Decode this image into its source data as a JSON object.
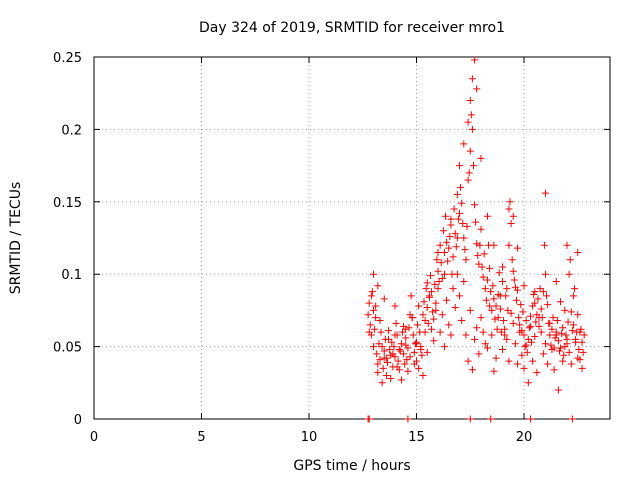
{
  "chart_data": {
    "type": "scatter",
    "title": "Day 324 of 2019, SRMTID for receiver mro1",
    "xlabel": "GPS time / hours",
    "ylabel": "SRMTID / TECUs",
    "xlim": [
      0,
      24
    ],
    "ylim": [
      0,
      0.25
    ],
    "grid": true,
    "marker": "+",
    "color": "#ff0000",
    "x_ticks": [
      {
        "value": 0,
        "label": "0"
      },
      {
        "value": 5,
        "label": "5"
      },
      {
        "value": 10,
        "label": "10"
      },
      {
        "value": 15,
        "label": "15"
      },
      {
        "value": 20,
        "label": "20"
      }
    ],
    "y_ticks": [
      {
        "value": 0,
        "label": "0"
      },
      {
        "value": 0.05,
        "label": "0.05"
      },
      {
        "value": 0.1,
        "label": "0.1"
      },
      {
        "value": 0.15,
        "label": "0.15"
      },
      {
        "value": 0.2,
        "label": "0.2"
      },
      {
        "value": 0.25,
        "label": "0.25"
      }
    ],
    "series": [
      {
        "name": "mro1",
        "x": [
          12.75,
          12.8,
          12.85,
          12.9,
          12.95,
          13.0,
          13.05,
          13.1,
          13.15,
          13.2,
          13.25,
          13.3,
          13.35,
          13.4,
          13.45,
          13.5,
          13.55,
          13.6,
          13.65,
          13.7,
          13.75,
          13.8,
          13.85,
          13.9,
          13.95,
          14.0,
          14.05,
          14.1,
          14.15,
          14.2,
          14.25,
          14.3,
          14.35,
          14.4,
          14.45,
          14.5,
          14.55,
          14.6,
          14.65,
          14.7,
          14.75,
          14.8,
          14.85,
          14.9,
          14.95,
          15.0,
          15.05,
          15.1,
          15.15,
          15.2,
          15.25,
          15.3,
          15.35,
          15.4,
          15.45,
          15.5,
          15.55,
          15.6,
          15.65,
          15.7,
          15.75,
          15.8,
          15.85,
          15.9,
          15.95,
          16.0,
          16.05,
          16.1,
          16.15,
          16.2,
          16.25,
          16.3,
          16.35,
          16.4,
          16.45,
          16.5,
          16.55,
          16.6,
          16.65,
          16.7,
          16.75,
          16.8,
          16.85,
          16.9,
          16.95,
          17.0,
          17.05,
          17.1,
          17.15,
          17.2,
          17.25,
          17.3,
          17.35,
          17.4,
          17.45,
          17.5,
          17.55,
          17.6,
          17.65,
          17.7,
          17.75,
          17.8,
          17.85,
          17.9,
          17.95,
          18.0,
          18.05,
          18.1,
          18.15,
          18.2,
          18.25,
          18.3,
          18.35,
          18.4,
          18.45,
          18.5,
          18.55,
          18.6,
          18.65,
          18.7,
          18.75,
          18.8,
          18.85,
          18.9,
          18.95,
          19.0,
          19.05,
          19.1,
          19.15,
          19.2,
          19.25,
          19.3,
          19.35,
          19.4,
          19.45,
          19.5,
          19.55,
          19.6,
          19.65,
          19.7,
          19.75,
          19.8,
          19.85,
          19.9,
          19.95,
          20.0,
          20.05,
          20.1,
          20.15,
          20.2,
          20.25,
          20.3,
          20.35,
          20.4,
          20.45,
          20.5,
          20.55,
          20.6,
          20.65,
          20.7,
          20.75,
          20.8,
          20.85,
          20.9,
          20.95,
          21.0,
          21.05,
          21.1,
          21.15,
          21.2,
          21.25,
          21.3,
          21.35,
          21.4,
          21.45,
          21.5,
          21.55,
          21.6,
          21.65,
          21.7,
          21.75,
          21.8,
          21.85,
          21.9,
          21.95,
          22.0,
          22.05,
          22.1,
          22.15,
          22.2,
          22.25,
          22.3,
          22.35,
          22.4,
          22.45,
          22.5,
          22.55,
          22.6,
          22.65,
          22.7,
          22.75,
          22.8,
          12.8,
          12.9,
          13.0,
          13.1,
          13.2,
          13.3,
          13.4,
          13.5,
          13.6,
          13.7,
          13.8,
          13.9,
          14.0,
          14.1,
          14.2,
          14.3,
          14.4,
          14.5,
          14.6,
          14.7,
          14.8,
          14.9,
          15.0,
          15.1,
          15.2,
          15.3,
          15.4,
          15.5,
          15.6,
          15.7,
          15.8,
          15.9,
          16.0,
          16.1,
          16.2,
          16.3,
          16.4,
          16.5,
          16.6,
          16.7,
          16.8,
          16.9,
          17.0,
          17.1,
          17.2,
          17.3,
          17.4,
          17.5,
          17.6,
          17.7,
          17.8,
          17.9,
          18.0,
          18.1,
          18.2,
          18.3,
          18.4,
          18.5,
          18.6,
          18.7,
          18.8,
          18.9,
          19.0,
          19.1,
          19.2,
          19.3,
          19.4,
          19.5,
          19.6,
          19.7,
          19.8,
          19.9,
          20.0,
          20.1,
          20.2,
          20.3,
          20.4,
          20.5,
          20.6,
          20.7,
          20.8,
          20.9,
          21.0,
          21.1,
          21.2,
          21.3,
          21.4,
          21.5,
          21.6,
          21.7,
          21.8,
          21.9,
          22.0,
          22.1,
          22.2,
          22.3,
          22.4,
          22.5,
          22.6,
          22.7,
          13.0,
          13.2,
          13.5,
          14.0,
          14.5,
          15.0,
          15.5,
          16.0,
          16.3,
          16.6,
          16.9,
          17.0,
          17.2,
          17.4,
          17.5,
          17.6,
          17.7,
          17.8,
          18.0,
          18.3,
          18.6,
          19.0,
          19.3,
          19.5,
          19.7,
          20.0,
          20.5,
          21.0,
          21.5,
          22.0,
          22.5,
          12.75,
          12.8,
          14.6,
          17.5,
          18.45,
          20.3,
          22.25
        ],
        "y": [
          0.072,
          0.08,
          0.065,
          0.058,
          0.088,
          0.075,
          0.062,
          0.07,
          0.045,
          0.038,
          0.052,
          0.041,
          0.06,
          0.05,
          0.035,
          0.047,
          0.055,
          0.042,
          0.039,
          0.061,
          0.048,
          0.044,
          0.053,
          0.036,
          0.05,
          0.043,
          0.066,
          0.058,
          0.04,
          0.034,
          0.047,
          0.052,
          0.06,
          0.045,
          0.038,
          0.056,
          0.041,
          0.049,
          0.063,
          0.072,
          0.085,
          0.07,
          0.058,
          0.046,
          0.052,
          0.04,
          0.065,
          0.078,
          0.06,
          0.05,
          0.044,
          0.072,
          0.081,
          0.068,
          0.09,
          0.077,
          0.066,
          0.084,
          0.099,
          0.088,
          0.074,
          0.069,
          0.093,
          0.08,
          0.11,
          0.102,
          0.095,
          0.12,
          0.108,
          0.097,
          0.13,
          0.115,
          0.14,
          0.122,
          0.109,
          0.118,
          0.126,
          0.134,
          0.1,
          0.112,
          0.145,
          0.128,
          0.119,
          0.155,
          0.138,
          0.142,
          0.16,
          0.149,
          0.135,
          0.125,
          0.117,
          0.11,
          0.133,
          0.165,
          0.17,
          0.185,
          0.21,
          0.2,
          0.175,
          0.148,
          0.136,
          0.121,
          0.113,
          0.107,
          0.12,
          0.131,
          0.105,
          0.098,
          0.114,
          0.09,
          0.082,
          0.096,
          0.12,
          0.104,
          0.088,
          0.075,
          0.092,
          0.083,
          0.069,
          0.078,
          0.062,
          0.086,
          0.101,
          0.076,
          0.06,
          0.095,
          0.068,
          0.058,
          0.085,
          0.09,
          0.075,
          0.12,
          0.15,
          0.135,
          0.11,
          0.102,
          0.096,
          0.091,
          0.082,
          0.089,
          0.07,
          0.065,
          0.079,
          0.061,
          0.074,
          0.058,
          0.05,
          0.068,
          0.046,
          0.055,
          0.063,
          0.071,
          0.053,
          0.078,
          0.086,
          0.08,
          0.067,
          0.072,
          0.083,
          0.064,
          0.09,
          0.076,
          0.07,
          0.088,
          0.12,
          0.1,
          0.085,
          0.079,
          0.066,
          0.058,
          0.051,
          0.062,
          0.07,
          0.049,
          0.056,
          0.06,
          0.068,
          0.054,
          0.047,
          0.081,
          0.059,
          0.063,
          0.044,
          0.05,
          0.058,
          0.052,
          0.067,
          0.1,
          0.11,
          0.074,
          0.061,
          0.085,
          0.09,
          0.055,
          0.06,
          0.072,
          0.048,
          0.041,
          0.062,
          0.053,
          0.046,
          0.058,
          0.06,
          0.085,
          0.05,
          0.078,
          0.032,
          0.068,
          0.025,
          0.042,
          0.03,
          0.055,
          0.028,
          0.045,
          0.058,
          0.036,
          0.048,
          0.027,
          0.064,
          0.051,
          0.033,
          0.043,
          0.07,
          0.038,
          0.052,
          0.035,
          0.048,
          0.03,
          0.06,
          0.046,
          0.085,
          0.062,
          0.054,
          0.075,
          0.09,
          0.06,
          0.072,
          0.05,
          0.082,
          0.065,
          0.058,
          0.09,
          0.077,
          0.1,
          0.085,
          0.068,
          0.095,
          0.058,
          0.04,
          0.075,
          0.034,
          0.055,
          0.063,
          0.045,
          0.07,
          0.06,
          0.052,
          0.049,
          0.078,
          0.058,
          0.033,
          0.042,
          0.07,
          0.085,
          0.048,
          0.062,
          0.055,
          0.04,
          0.073,
          0.066,
          0.052,
          0.038,
          0.06,
          0.044,
          0.035,
          0.051,
          0.025,
          0.064,
          0.04,
          0.057,
          0.032,
          0.07,
          0.06,
          0.045,
          0.052,
          0.038,
          0.066,
          0.048,
          0.034,
          0.058,
          0.02,
          0.049,
          0.04,
          0.075,
          0.055,
          0.046,
          0.038,
          0.065,
          0.053,
          0.042,
          0.06,
          0.035,
          0.1,
          0.092,
          0.083,
          0.078,
          0.062,
          0.053,
          0.094,
          0.115,
          0.1,
          0.138,
          0.125,
          0.175,
          0.19,
          0.205,
          0.22,
          0.235,
          0.248,
          0.228,
          0.18,
          0.14,
          0.12,
          0.105,
          0.145,
          0.14,
          0.118,
          0.092,
          0.088,
          0.156,
          0.095,
          0.12,
          0.115,
          0.0,
          0.0,
          0.0,
          0.0,
          0.0,
          0.0,
          0.0
        ]
      }
    ]
  }
}
